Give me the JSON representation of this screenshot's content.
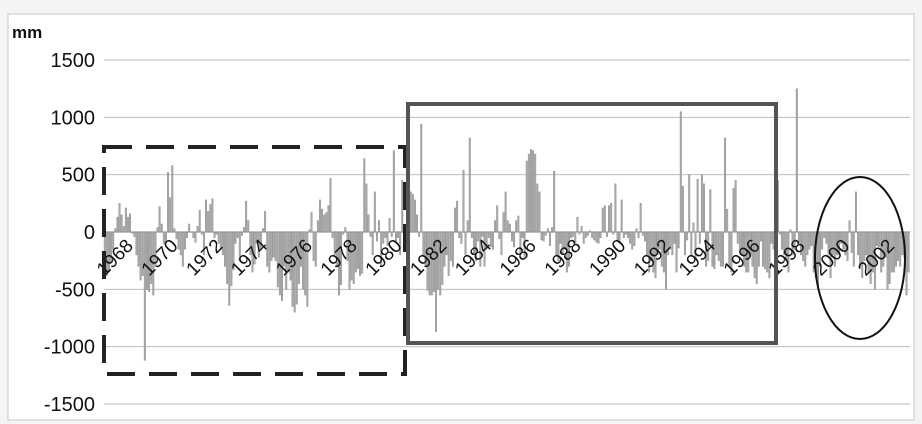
{
  "chart_data": {
    "type": "bar",
    "unit_label": "mm",
    "ylim": [
      -1500,
      1500
    ],
    "y_ticks": [
      "1500",
      "1000",
      "500",
      "0",
      "-500",
      "-1000",
      "-1500"
    ],
    "x_ticks": [
      "1968",
      "1970",
      "1972",
      "1974",
      "1976",
      "1978",
      "1980",
      "1982",
      "1984",
      "1986",
      "1988",
      "1990",
      "1992",
      "1994",
      "1996",
      "1998",
      "2000",
      "2002"
    ],
    "x_start": 1968,
    "x_end": 2004,
    "grid": true,
    "legend": "none",
    "series": [
      {
        "values": [
          -250,
          -380,
          -350,
          -270,
          -150,
          30,
          130,
          250,
          150,
          50,
          210,
          130,
          160,
          -10,
          -40,
          -200,
          -300,
          -420,
          -380,
          -1120,
          -500,
          -520,
          -450,
          -550,
          -300,
          40,
          220,
          70,
          -100,
          -100,
          520,
          300,
          580,
          30,
          -60,
          -150,
          -200,
          -300,
          -150,
          -50,
          70,
          0,
          -50,
          -90,
          50,
          190,
          -20,
          -200,
          280,
          180,
          240,
          290,
          -50,
          -20,
          -100,
          -150,
          -200,
          -300,
          -450,
          -640,
          -470,
          -330,
          -100,
          -50,
          -250,
          -30,
          40,
          270,
          100,
          -200,
          -350,
          -280,
          -100,
          -220,
          -150,
          30,
          180,
          -300,
          -350,
          -250,
          -220,
          -250,
          -480,
          -550,
          -600,
          -300,
          -500,
          -350,
          -420,
          -650,
          -700,
          -630,
          -450,
          -300,
          -500,
          -550,
          -650,
          20,
          170,
          -250,
          -300,
          100,
          280,
          200,
          150,
          170,
          230,
          470,
          -50,
          -200,
          -300,
          -550,
          -460,
          -20,
          40,
          -250,
          -500,
          -420,
          -450,
          -350,
          -320,
          -380,
          -360,
          640,
          420,
          150,
          -40,
          -200,
          350,
          -80,
          100,
          -300,
          -100,
          -50,
          -120,
          120,
          -40,
          710,
          -80,
          -50,
          -200,
          450,
          -80,
          -80,
          300,
          350,
          330,
          280,
          150,
          -40,
          940,
          -200,
          -300,
          -510,
          -550,
          -550,
          -520,
          -870,
          -500,
          -550,
          -460,
          -300,
          -200,
          -380,
          -250,
          -300,
          210,
          270,
          -50,
          -100,
          540,
          -200,
          100,
          820,
          -50,
          -200,
          -250,
          -80,
          -300,
          -40,
          -300,
          -150,
          -50,
          -130,
          -150,
          100,
          230,
          -60,
          -200,
          170,
          350,
          100,
          70,
          -80,
          -130,
          100,
          140,
          -200,
          -50,
          -230,
          620,
          680,
          720,
          710,
          680,
          420,
          350,
          -70,
          -80,
          -30,
          30,
          -120,
          40,
          530,
          -200,
          -250,
          -100,
          -200,
          -150,
          -350,
          -300,
          -50,
          -40,
          -100,
          130,
          -20,
          50,
          -100,
          -50,
          -30,
          10,
          -50,
          -70,
          -90,
          -100,
          -50,
          210,
          230,
          -40,
          230,
          250,
          -20,
          420,
          -80,
          -100,
          280,
          -50,
          -20,
          -50,
          -100,
          -150,
          -120,
          30,
          -50,
          250,
          -30,
          -80,
          -200,
          -350,
          -250,
          -350,
          -400,
          -200,
          -150,
          -300,
          -350,
          -500,
          -200,
          -150,
          -200,
          -100,
          -350,
          -140,
          1050,
          400,
          -200,
          -70,
          500,
          -200,
          80,
          -250,
          460,
          -100,
          500,
          420,
          -300,
          -250,
          370,
          -300,
          -320,
          -200,
          -250,
          -300,
          -300,
          820,
          200,
          -300,
          -350,
          380,
          450,
          -100,
          -150,
          -200,
          -300,
          -350,
          -350,
          -200,
          -300,
          -400,
          -450,
          -300,
          -80,
          -300,
          -320,
          -350,
          -400,
          -100,
          -150,
          -300,
          450,
          -20,
          -150,
          -200,
          -250,
          -350,
          20,
          -200,
          -150,
          1250,
          -100,
          -200,
          -250,
          -300,
          -200,
          -150,
          -120,
          -350,
          -400,
          -500,
          -300,
          -150,
          -50,
          -100,
          -200,
          -400,
          -200,
          -300,
          -200,
          -200,
          -100,
          -150,
          -200,
          -250,
          100,
          -180,
          -300,
          350,
          -200,
          -300,
          -400,
          -250,
          -200,
          -350,
          -450,
          -350,
          -500,
          -120,
          -130,
          -350,
          -300,
          -220,
          -500,
          -450,
          -350,
          -350,
          -300,
          -250,
          -300,
          -200,
          -220,
          -550,
          -350
        ]
      }
    ],
    "colors": {
      "bar": "#aaaaaa",
      "bar_stroke": "#8a8a8a",
      "grid": "#bdbdbd",
      "frame": "#c8c8c8",
      "box_dashed": "#222222",
      "box_solid": "#555555",
      "ellipse": "#111111"
    }
  }
}
